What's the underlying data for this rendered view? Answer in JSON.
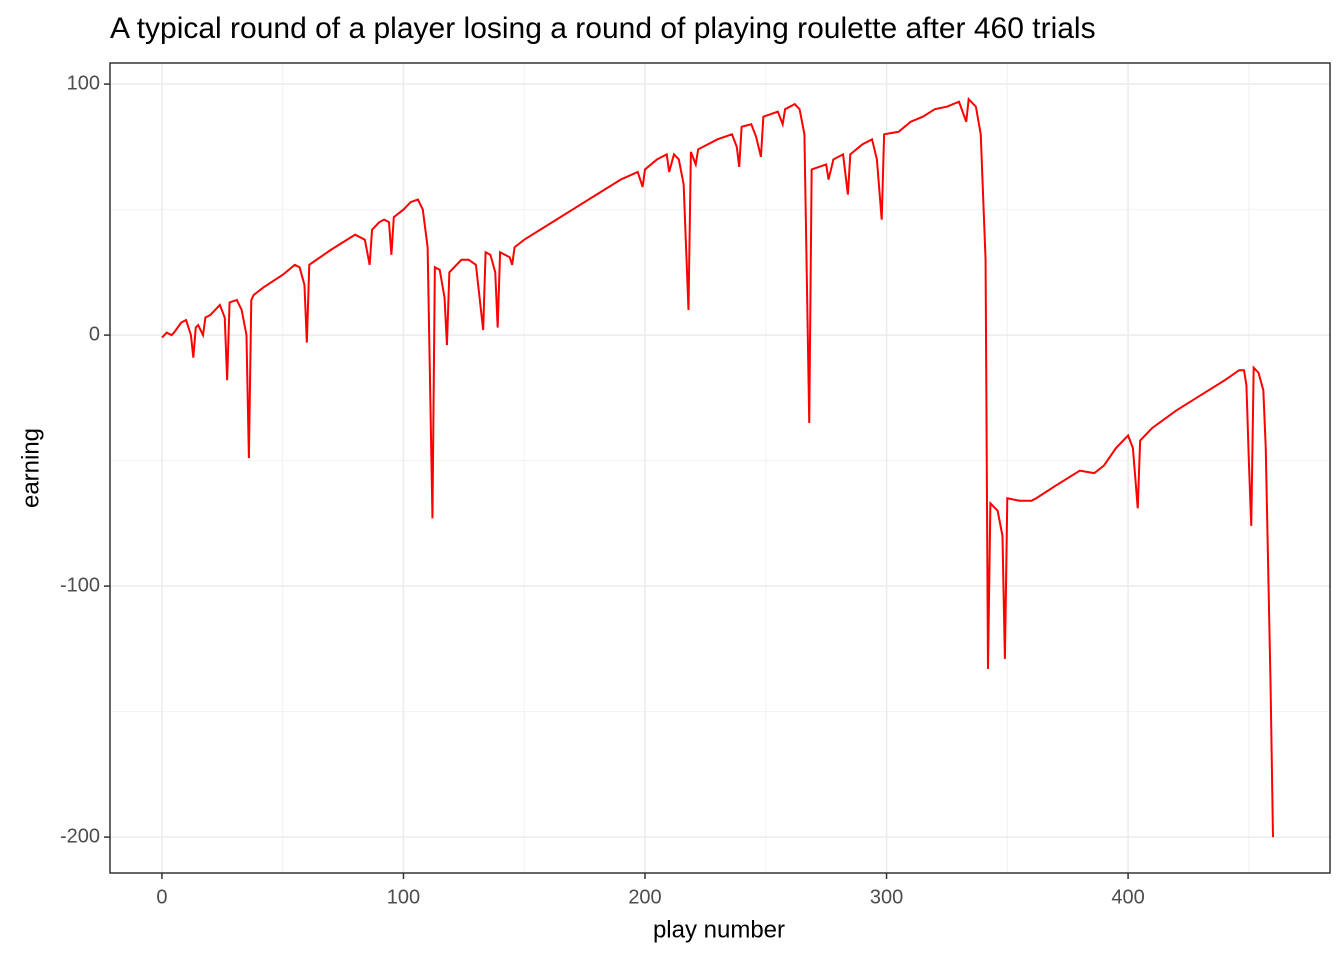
{
  "chart_data": {
    "type": "line",
    "title": "A typical round of a player losing a round of playing roulette after 460 trials",
    "x_label": "play number",
    "y_label": "earning",
    "x": [
      0,
      2,
      4,
      5,
      8,
      10,
      12,
      13,
      14,
      15,
      17,
      18,
      20,
      24,
      26,
      27,
      28,
      31,
      33,
      35,
      36,
      37,
      38,
      42,
      50,
      55,
      57,
      59,
      60,
      61,
      70,
      80,
      84,
      86,
      87,
      90,
      92,
      94,
      95,
      96,
      100,
      103,
      106,
      108,
      110,
      112,
      113,
      115,
      117,
      118,
      119,
      124,
      127,
      130,
      133,
      134,
      136,
      138,
      139,
      140,
      144,
      145,
      146,
      150,
      160,
      170,
      180,
      190,
      197,
      199,
      200,
      205,
      209,
      210,
      212,
      214,
      216,
      218,
      219,
      221,
      222,
      230,
      236,
      238,
      239,
      240,
      244,
      246,
      248,
      249,
      255,
      257,
      258,
      262,
      264,
      266,
      268,
      269,
      275,
      276,
      278,
      282,
      284,
      285,
      290,
      294,
      296,
      298,
      299,
      305,
      310,
      315,
      320,
      325,
      330,
      333,
      334,
      337,
      339,
      341,
      342,
      343,
      346,
      348,
      349,
      350,
      355,
      360,
      362,
      370,
      380,
      386,
      390,
      395,
      400,
      402,
      404,
      405,
      410,
      420,
      430,
      440,
      446,
      448,
      449,
      450,
      451,
      452,
      454,
      456,
      457,
      459,
      460
    ],
    "series": [
      {
        "name": "earning",
        "color": "#ff0000",
        "values": [
          -1,
          1,
          0,
          1,
          5,
          6,
          0,
          -9,
          3,
          4,
          0,
          7,
          8,
          12,
          7,
          -18,
          13,
          14,
          10,
          0,
          -49,
          14,
          16,
          19,
          24,
          28,
          27,
          20,
          -3,
          28,
          34,
          40,
          38,
          28,
          42,
          45,
          46,
          45,
          32,
          47,
          50,
          53,
          54,
          50,
          35,
          -73,
          27,
          26,
          15,
          -4,
          25,
          30,
          30,
          28,
          2,
          33,
          32,
          25,
          3,
          33,
          31,
          28,
          35,
          38,
          44,
          50,
          56,
          62,
          65,
          59,
          66,
          70,
          72,
          65,
          72,
          70,
          60,
          10,
          73,
          68,
          74,
          78,
          80,
          75,
          67,
          83,
          84,
          79,
          71,
          87,
          89,
          84,
          90,
          92,
          90,
          80,
          -35,
          66,
          68,
          62,
          70,
          72,
          56,
          72,
          76,
          78,
          70,
          46,
          80,
          81,
          85,
          87,
          90,
          91,
          93,
          85,
          94,
          91,
          80,
          30,
          -133,
          -67,
          -70,
          -80,
          -129,
          -65,
          -66,
          -66,
          -65,
          -60,
          -54,
          -55,
          -52,
          -45,
          -40,
          -45,
          -69,
          -42,
          -37,
          -30,
          -24,
          -18,
          -14,
          -14,
          -20,
          -50,
          -76,
          -13,
          -15,
          -22,
          -45,
          -140,
          -200
        ]
      }
    ],
    "xlim": [
      -21.5,
      483.6
    ],
    "ylim": [
      -214.3,
      108.4
    ],
    "xticks": [
      0,
      100,
      200,
      300,
      400
    ],
    "yticks": [
      -200,
      -100,
      0,
      100
    ],
    "xminor": [
      50,
      150,
      250,
      350,
      450
    ],
    "yminor": [
      -150,
      -50,
      50
    ],
    "grid": true
  }
}
